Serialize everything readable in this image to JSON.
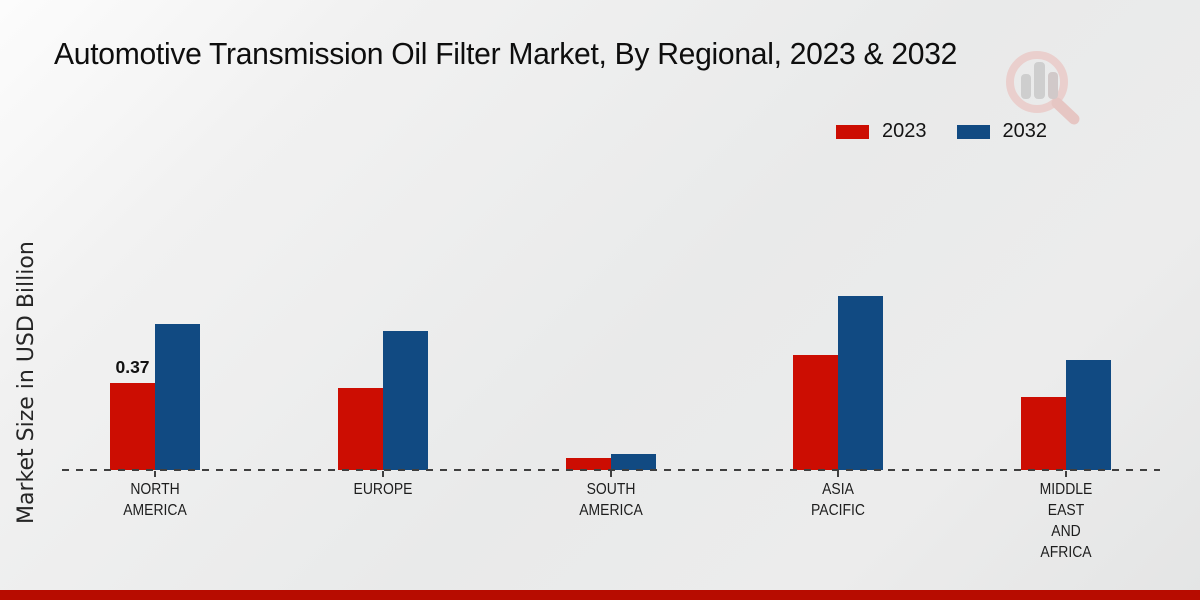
{
  "header": {
    "title": "Automotive Transmission Oil Filter Market, By Regional, 2023 & 2032"
  },
  "colors": {
    "series_2023": "#cc0d02",
    "series_2032": "#114a82",
    "footer_bar": "#b70c00",
    "zero_line": "#3f3f3f",
    "title_text": "#0e0e0e",
    "logo_ring": "#eac9c6",
    "logo_bars": "#c8c8c8"
  },
  "chart_data": {
    "type": "bar",
    "title": "Automotive Transmission Oil Filter Market, By Regional, 2023 & 2032",
    "xlabel": "",
    "ylabel": "Market Size in USD Billion",
    "categories": [
      "NORTH AMERICA",
      "EUROPE",
      "SOUTH AMERICA",
      "ASIA PACIFIC",
      "MIDDLE EAST AND AFRICA"
    ],
    "category_label_lines": [
      [
        "NORTH",
        "AMERICA"
      ],
      [
        "EUROPE"
      ],
      [
        "SOUTH",
        "AMERICA"
      ],
      [
        "ASIA",
        "PACIFIC"
      ],
      [
        "MIDDLE",
        "EAST",
        "AND",
        "AFRICA"
      ]
    ],
    "series": [
      {
        "name": "2023",
        "color": "#cc0d02",
        "values": [
          0.37,
          0.35,
          0.05,
          0.49,
          0.31
        ]
      },
      {
        "name": "2032",
        "color": "#114a82",
        "values": [
          0.62,
          0.59,
          0.07,
          0.74,
          0.47
        ]
      }
    ],
    "bar_value_labels": [
      {
        "series": "2023",
        "category": "NORTH AMERICA",
        "text": "0.37"
      }
    ],
    "ylim": [
      0,
      0.8
    ],
    "grid": false,
    "y_axis_ticks_visible": false,
    "baseline_style": "dashed",
    "legend_position": "top-right"
  }
}
